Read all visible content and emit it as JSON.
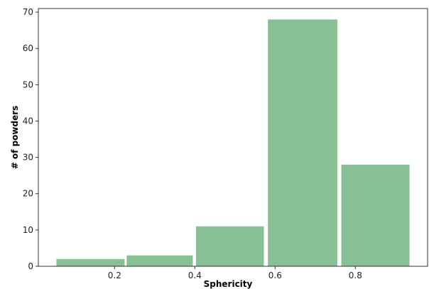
{
  "chart_data": {
    "type": "bar",
    "title": "",
    "xlabel": "Sphericity",
    "ylabel": "# of powders",
    "bins": [
      {
        "x0": 0.055,
        "x1": 0.225,
        "value": 2
      },
      {
        "x0": 0.23,
        "x1": 0.395,
        "value": 3
      },
      {
        "x0": 0.403,
        "x1": 0.572,
        "value": 11
      },
      {
        "x0": 0.582,
        "x1": 0.755,
        "value": 68
      },
      {
        "x0": 0.765,
        "x1": 0.935,
        "value": 28
      }
    ],
    "xlim": [
      0.01,
      0.98
    ],
    "ylim": [
      0,
      71
    ],
    "xticks": [
      0.2,
      0.4,
      0.6,
      0.8
    ],
    "xtick_labels": [
      "0.2",
      "0.4",
      "0.6",
      "0.8"
    ],
    "yticks": [
      0,
      10,
      20,
      30,
      40,
      50,
      60,
      70
    ],
    "ytick_labels": [
      "0",
      "10",
      "20",
      "30",
      "40",
      "50",
      "60",
      "70"
    ],
    "grid": false,
    "bar_color": "#88c096",
    "axis_color": "#333333"
  }
}
